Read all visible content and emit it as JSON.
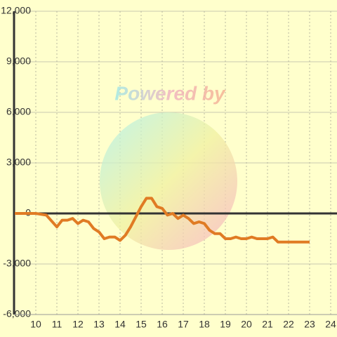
{
  "chart_data": {
    "type": "line",
    "watermark": "Powered by",
    "x": [
      9,
      10,
      10.5,
      11,
      11.25,
      11.5,
      11.75,
      12,
      12.25,
      12.5,
      12.75,
      13,
      13.25,
      13.5,
      13.75,
      14,
      14.25,
      14.5,
      14.75,
      15,
      15.25,
      15.5,
      15.75,
      16,
      16.25,
      16.5,
      16.75,
      17,
      17.25,
      17.5,
      17.75,
      18,
      18.25,
      18.5,
      18.75,
      19,
      19.25,
      19.5,
      19.75,
      20,
      20.25,
      20.5,
      20.75,
      21,
      21.25,
      21.5,
      23
    ],
    "series": [
      {
        "color": "#e07b24",
        "values": [
          0,
          0,
          -100,
          -800,
          -400,
          -400,
          -300,
          -600,
          -400,
          -500,
          -900,
          -1100,
          -1500,
          -1400,
          -1400,
          -1600,
          -1300,
          -800,
          -200,
          400,
          900,
          900,
          400,
          300,
          -100,
          0,
          -300,
          -100,
          -300,
          -600,
          -500,
          -600,
          -1000,
          -1200,
          -1200,
          -1500,
          -1500,
          -1400,
          -1500,
          -1500,
          -1400,
          -1500,
          -1500,
          -1500,
          -1400,
          -1700,
          -1700
        ]
      }
    ],
    "xlim": [
      9,
      24.3
    ],
    "ylim": [
      -6000,
      12000
    ],
    "xticks": [
      10,
      11,
      12,
      13,
      14,
      15,
      16,
      17,
      18,
      19,
      20,
      21,
      22,
      23,
      24
    ],
    "yticks": [
      {
        "value": -6000,
        "label": "-6,000"
      },
      {
        "value": -3000,
        "label": "-3,000"
      },
      0,
      {
        "value": 3000,
        "label": "3,000"
      },
      {
        "value": 6000,
        "label": "6,000"
      },
      {
        "value": 9000,
        "label": "9,000"
      },
      {
        "value": 12000,
        "label": "12,000"
      }
    ],
    "grid": true
  }
}
